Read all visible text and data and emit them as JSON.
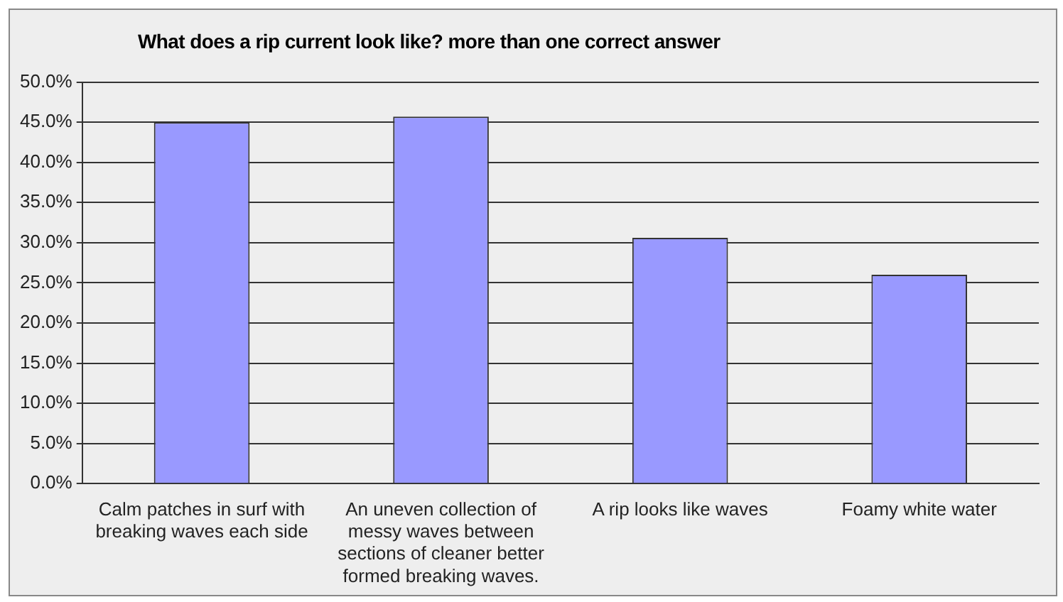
{
  "chart_data": {
    "type": "bar",
    "title": "What does a rip current look like? more than one correct answer",
    "categories": [
      "Calm patches in surf with breaking waves each side",
      "An uneven collection of messy waves between sections of cleaner better formed breaking waves.",
      "A rip looks like waves",
      "Foamy white water"
    ],
    "values": [
      45.0,
      45.7,
      30.6,
      26.0
    ],
    "color": "#9999ff",
    "ylim": [
      0,
      50
    ],
    "yticks": [
      {
        "value": 0,
        "label": "0.0%"
      },
      {
        "value": 5,
        "label": "5.0%"
      },
      {
        "value": 10,
        "label": "10.0%"
      },
      {
        "value": 15,
        "label": "15.0%"
      },
      {
        "value": 20,
        "label": "20.0%"
      },
      {
        "value": 25,
        "label": "25.0%"
      },
      {
        "value": 30,
        "label": "30.0%"
      },
      {
        "value": 35,
        "label": "35.0%"
      },
      {
        "value": 40,
        "label": "40.0%"
      },
      {
        "value": 45,
        "label": "45.0%"
      },
      {
        "value": 50,
        "label": "50.0%"
      }
    ],
    "grid": "y",
    "legend": false
  }
}
